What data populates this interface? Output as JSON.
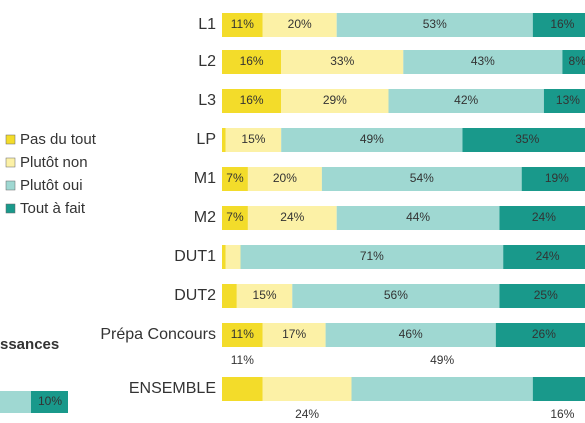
{
  "chart_data": [
    {
      "type": "stacked-bar-horizontal",
      "categories": [
        "L1",
        "L2",
        "L3",
        "LP",
        "M1",
        "M2",
        "DUT1",
        "DUT2",
        "Prépa Concours",
        "ENSEMBLE"
      ],
      "xlim": [
        0,
        100
      ],
      "series": [
        {
          "name": "Pas du tout",
          "color": "#f3dc2a",
          "values": [
            11,
            16,
            16,
            1,
            7,
            7,
            1,
            4,
            11,
            11
          ],
          "value_labels": [
            "11%",
            "16%",
            "16%",
            null,
            "7%",
            "7%",
            null,
            null,
            "11%",
            "11%"
          ]
        },
        {
          "name": "Plutôt non",
          "color": "#fcf1a6",
          "values": [
            20,
            33,
            29,
            15,
            20,
            24,
            4,
            15,
            17,
            24
          ],
          "value_labels": [
            "20%",
            "33%",
            "29%",
            "15%",
            "20%",
            "24%",
            null,
            "15%",
            "17%",
            "24%"
          ]
        },
        {
          "name": "Plutôt oui",
          "color": "#9fd8d2",
          "values": [
            53,
            43,
            42,
            49,
            54,
            44,
            71,
            56,
            46,
            49
          ],
          "value_labels": [
            "53%",
            "43%",
            "42%",
            "49%",
            "54%",
            "44%",
            "71%",
            "56%",
            "46%",
            "49%"
          ]
        },
        {
          "name": "Tout à fait",
          "color": "#19998b",
          "values": [
            16,
            8,
            13,
            35,
            19,
            24,
            24,
            25,
            26,
            16
          ],
          "value_labels": [
            "16%",
            "8%",
            "13%",
            "35%",
            "19%",
            "24%",
            "24%",
            "25%",
            "26%",
            "16%"
          ]
        }
      ]
    },
    {
      "type": "bar",
      "title": "ssances",
      "values": [
        10
      ],
      "value_labels": [
        "10%"
      ],
      "color": "#19998b"
    }
  ]
}
